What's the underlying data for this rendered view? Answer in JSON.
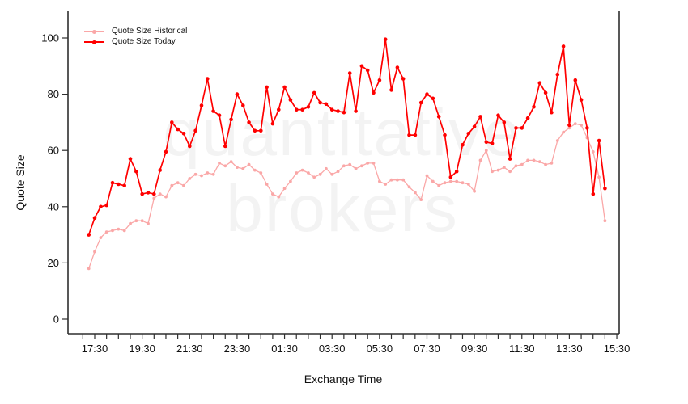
{
  "figure": {
    "background": "#FFFFFF"
  },
  "watermark": {
    "line1": "quantitative",
    "line2": "brokers",
    "color": "#F3F3F3"
  },
  "legend": {
    "items": [
      {
        "label": "Quote Size Historical",
        "color": "#FAA7A7"
      },
      {
        "label": "Quote Size Today",
        "color": "#FF0000"
      }
    ]
  },
  "axes": {
    "y": {
      "label": "Quote Size",
      "tick_labels": [
        "0",
        "20",
        "40",
        "60",
        "80",
        "100"
      ],
      "tick_values": [
        0,
        20,
        40,
        60,
        80,
        100
      ]
    },
    "x": {
      "label": "Exchange Time",
      "tick_labels": [
        "17:30",
        "19:30",
        "21:30",
        "23:30",
        "01:30",
        "03:30",
        "05:30",
        "07:30",
        "09:30",
        "11:30",
        "13:30",
        "15:30"
      ],
      "minor_tick_interval_minutes": 30
    }
  },
  "colors": {
    "axis": "#2E2E2E",
    "tick_text": "#111111",
    "today": "#FF0000",
    "historical": "#FAA7A7"
  },
  "chart_data": {
    "type": "line",
    "title": "",
    "xlabel": "Exchange Time",
    "ylabel": "Quote Size",
    "ylim": [
      0,
      105
    ],
    "grid": false,
    "legend_position": "top-left",
    "marker": "point",
    "x": [
      "17:15",
      "17:30",
      "17:45",
      "18:00",
      "18:15",
      "18:30",
      "18:45",
      "19:00",
      "19:15",
      "19:30",
      "19:45",
      "20:00",
      "20:15",
      "20:30",
      "20:45",
      "21:00",
      "21:15",
      "21:30",
      "21:45",
      "22:00",
      "22:15",
      "22:30",
      "22:45",
      "23:00",
      "23:15",
      "23:30",
      "23:45",
      "00:00",
      "00:15",
      "00:30",
      "00:45",
      "01:00",
      "01:15",
      "01:30",
      "01:45",
      "02:00",
      "02:15",
      "02:30",
      "02:45",
      "03:00",
      "03:15",
      "03:30",
      "03:45",
      "04:00",
      "04:15",
      "04:30",
      "04:45",
      "05:00",
      "05:15",
      "05:30",
      "05:45",
      "06:00",
      "06:15",
      "06:30",
      "06:45",
      "07:00",
      "07:15",
      "07:30",
      "07:45",
      "08:00",
      "08:15",
      "08:30",
      "08:45",
      "09:00",
      "09:15",
      "09:30",
      "09:45",
      "10:00",
      "10:15",
      "10:30",
      "10:45",
      "11:00",
      "11:15",
      "11:30",
      "11:45",
      "12:00",
      "12:15",
      "12:30",
      "12:45",
      "13:00",
      "13:15",
      "13:30",
      "13:45",
      "14:00",
      "14:15",
      "14:30",
      "14:45",
      "15:00"
    ],
    "series": [
      {
        "name": "Quote Size Historical",
        "color": "#FAA7A7",
        "values": [
          18,
          24,
          29,
          31,
          31.5,
          32,
          31.5,
          34,
          35,
          35,
          34,
          43,
          44.5,
          43.5,
          47.5,
          48.5,
          47.5,
          50,
          51.5,
          51,
          52,
          51.5,
          55.5,
          54.5,
          56,
          54,
          53.5,
          55,
          53,
          52,
          48,
          44.5,
          43.5,
          46.5,
          49,
          52,
          53,
          52,
          50.5,
          51.5,
          53.5,
          51.5,
          52.5,
          54.5,
          55,
          53.5,
          54.5,
          55.5,
          55.5,
          49,
          48,
          49.5,
          49.5,
          49.5,
          47,
          45,
          42.5,
          51,
          49,
          47.5,
          48.5,
          49,
          49,
          48.5,
          48,
          45.5,
          56.5,
          60,
          52.5,
          53,
          54,
          52.5,
          54.5,
          55,
          56.5,
          56.5,
          56,
          55,
          55.5,
          63.5,
          66.5,
          68,
          69.5,
          69,
          64.5,
          59.5,
          50.5,
          35
        ]
      },
      {
        "name": "Quote Size Today",
        "color": "#FF0000",
        "values": [
          30,
          36,
          40,
          40.5,
          48.5,
          48,
          47.5,
          57,
          52.5,
          44.5,
          45,
          44.5,
          53,
          59.5,
          70,
          67.5,
          66,
          61.5,
          67,
          76,
          85.5,
          74,
          72.5,
          61.5,
          71,
          80,
          76,
          70,
          67,
          67,
          82.5,
          69.5,
          74.5,
          82.5,
          78,
          74.5,
          74.5,
          75.5,
          80.5,
          77,
          76.5,
          74.5,
          74,
          73.5,
          87.5,
          74,
          90,
          88.5,
          80.5,
          85,
          99.5,
          81.5,
          89.5,
          85.5,
          65.5,
          65.5,
          77,
          80,
          78.5,
          72,
          65.5,
          50.5,
          52.5,
          62,
          66,
          68.5,
          72,
          63,
          62.5,
          72.5,
          70,
          57,
          68,
          68,
          71.5,
          75.5,
          84,
          80.5,
          73.5,
          87,
          97,
          69,
          85,
          78,
          68,
          44.5,
          63.5,
          46.5
        ]
      }
    ]
  }
}
